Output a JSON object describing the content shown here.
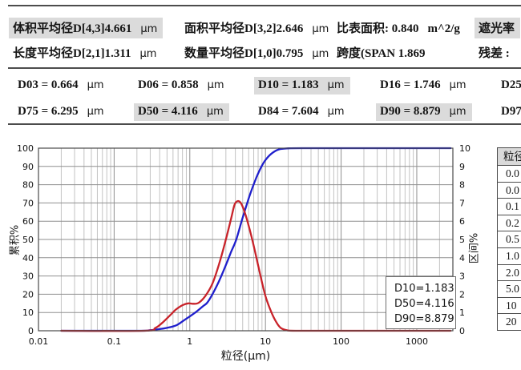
{
  "stats": {
    "rows": [
      [
        {
          "text": "体积平均径D[4,3]4.661",
          "unit": "μm",
          "highlight": true
        },
        {
          "text": "面积平均径D[3,2]2.646",
          "unit": "μm",
          "highlight": false
        },
        {
          "text": "比表面积:  0.840",
          "unit": "m^2/g",
          "highlight": false
        },
        {
          "text": "遮光率",
          "unit": "",
          "highlight": true
        }
      ],
      [
        {
          "text": "长度平均径D[2,1]1.311",
          "unit": "μm",
          "highlight": false
        },
        {
          "text": "数量平均径D[1,0]0.795",
          "unit": "μm",
          "highlight": false
        },
        {
          "text": "跨度(SPAN 1.869",
          "unit": "",
          "highlight": false
        },
        {
          "text": "残差 :",
          "unit": "",
          "highlight": false
        }
      ]
    ]
  },
  "dvalues": {
    "rows": [
      [
        {
          "text": "D03 = 0.664",
          "unit": "μm",
          "highlight": false
        },
        {
          "text": "D06 = 0.858",
          "unit": "μm",
          "highlight": false
        },
        {
          "text": "D10 = 1.183",
          "unit": "μm",
          "highlight": true
        },
        {
          "text": "D16 = 1.746",
          "unit": "μm",
          "highlight": false
        },
        {
          "text": "D25",
          "unit": "",
          "highlight": false
        }
      ],
      [
        {
          "text": "D75 = 6.295",
          "unit": "μm",
          "highlight": false
        },
        {
          "text": "D50 = 4.116",
          "unit": "μm",
          "highlight": true
        },
        {
          "text": "D84 = 7.604",
          "unit": "μm",
          "highlight": false
        },
        {
          "text": "D90 = 8.879",
          "unit": "μm",
          "highlight": true
        },
        {
          "text": "D97",
          "unit": "",
          "highlight": false
        }
      ]
    ]
  },
  "chart_data": {
    "type": "line",
    "x_axis": {
      "label": "粒径(μm)",
      "scale": "log",
      "min": 0.01,
      "max": 3000,
      "ticks": [
        0.01,
        0.1,
        1,
        10,
        100,
        1000
      ]
    },
    "y_left": {
      "label": "累积%",
      "min": 0,
      "max": 100,
      "step": 10
    },
    "y_right": {
      "label": "区间%",
      "min": 0,
      "max": 10,
      "step": 1
    },
    "grid": true,
    "legend_position": "top-right",
    "legend": [
      "D10=1.183",
      "D50=4.116",
      "D90=8.879"
    ],
    "series": [
      {
        "name": "cumulative",
        "axis": "left",
        "color": "#1f1fcc",
        "x": [
          0.02,
          0.2,
          0.3,
          0.4,
          0.5,
          0.664,
          0.858,
          1.183,
          1.5,
          1.746,
          2.3,
          3,
          3.5,
          4.116,
          5,
          6.295,
          7.604,
          8.879,
          10,
          12,
          15,
          20,
          30,
          100,
          1000,
          2800
        ],
        "y": [
          0,
          0,
          0.3,
          0.9,
          1.6,
          3,
          6,
          10,
          13.5,
          16,
          25,
          36,
          43,
          50,
          62,
          75,
          84,
          90,
          93.5,
          97,
          99.3,
          99.9,
          100,
          100,
          100,
          100
        ]
      },
      {
        "name": "frequency",
        "axis": "right",
        "color": "#c8232a",
        "x": [
          0.02,
          0.25,
          0.35,
          0.45,
          0.55,
          0.65,
          0.8,
          0.95,
          1.1,
          1.3,
          1.6,
          2,
          2.5,
          3,
          3.5,
          3.9,
          4.3,
          4.8,
          5.5,
          6.5,
          7.5,
          8.5,
          10,
          12,
          14,
          16,
          19,
          25,
          100,
          1000,
          2800
        ],
        "y": [
          0,
          0,
          0.15,
          0.5,
          0.85,
          1.15,
          1.4,
          1.5,
          1.48,
          1.52,
          1.9,
          2.6,
          3.8,
          5.0,
          6.1,
          6.9,
          7.1,
          6.95,
          6.3,
          5.2,
          4.1,
          3.1,
          1.9,
          1.0,
          0.45,
          0.15,
          0.03,
          0,
          0,
          0,
          0
        ]
      }
    ]
  },
  "side_table": {
    "header": "粒径",
    "rows": [
      "0.0",
      "0.0",
      "0.1",
      "0.2",
      "0.5",
      "1.0",
      "2.0",
      "5.0",
      "10",
      "20"
    ]
  }
}
